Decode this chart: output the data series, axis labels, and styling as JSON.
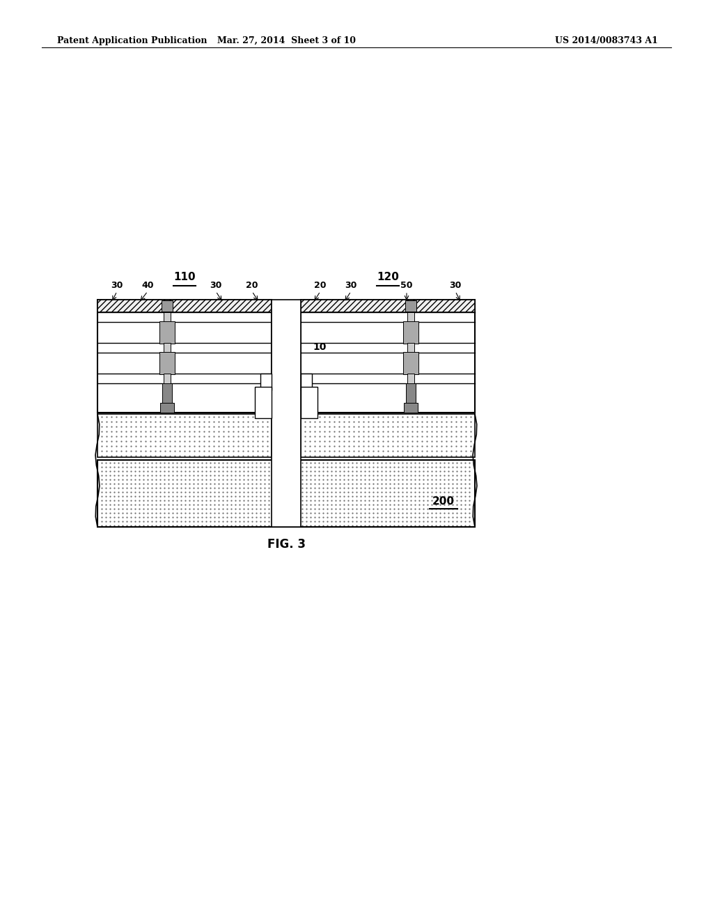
{
  "header_left": "Patent Application Publication",
  "header_mid": "Mar. 27, 2014  Sheet 3 of 10",
  "header_right": "US 2014/0083743 A1",
  "fig_label": "FIG. 3",
  "background_color": "#ffffff",
  "line_color": "#000000",
  "label_110": "110",
  "label_120": "120",
  "label_200": "200",
  "label_10": "10",
  "labels_left": [
    "30",
    "40",
    "30",
    "20"
  ],
  "labels_right": [
    "20",
    "30",
    "50",
    "30"
  ]
}
